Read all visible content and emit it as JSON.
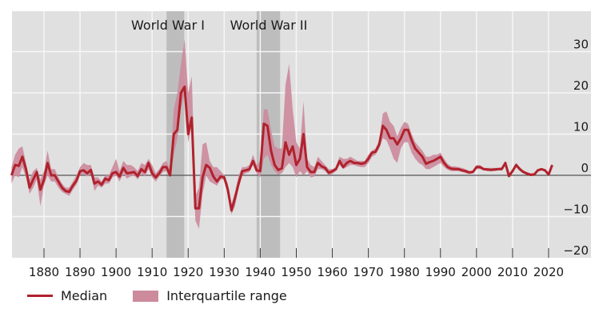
{
  "chart_data": {
    "type": "line",
    "title": "",
    "xlabel": "",
    "ylabel": "",
    "xlim": [
      1871,
      2032
    ],
    "ylim": [
      -20,
      40
    ],
    "grid": true,
    "legend_position": "bottom-left",
    "x_ticks": [
      1880,
      1890,
      1900,
      1910,
      1920,
      1930,
      1940,
      1950,
      1960,
      1970,
      1980,
      1990,
      2000,
      2010,
      2020
    ],
    "x_tick_labels": [
      "1880",
      "1890",
      "1900",
      "1910",
      "1920",
      "1930",
      "1940",
      "1950",
      "1960",
      "1970",
      "1980",
      "1990",
      "2000",
      "2010",
      "2020"
    ],
    "y_ticks": [
      30,
      20,
      10,
      0,
      -10,
      -20
    ],
    "y_tick_labels": [
      "30",
      "20",
      "10",
      "0",
      "−10",
      "−20"
    ],
    "y_axis_side": "right",
    "annotations": [
      {
        "label": "World War I",
        "start": 1914,
        "end": 1918.9
      },
      {
        "label": "World War II",
        "start": 1939,
        "end": 1945.5
      }
    ],
    "colors": {
      "median": "#b0222c",
      "iqr": "#cc8a9c",
      "band": "#bdbdbd",
      "plot_bg": "#e0e0e0",
      "grid": "#f6f6f6",
      "zero": "#555555"
    },
    "legend": [
      {
        "name": "Median",
        "kind": "line"
      },
      {
        "name": "Interquartile range",
        "kind": "area"
      }
    ],
    "series": [
      {
        "name": "Median",
        "x": [
          1871,
          1872,
          1873,
          1874,
          1875,
          1876,
          1877,
          1878,
          1879,
          1880,
          1881,
          1882,
          1883,
          1884,
          1885,
          1886,
          1887,
          1888,
          1889,
          1890,
          1891,
          1892,
          1893,
          1894,
          1895,
          1896,
          1897,
          1898,
          1899,
          1900,
          1901,
          1902,
          1903,
          1904,
          1905,
          1906,
          1907,
          1908,
          1909,
          1910,
          1911,
          1912,
          1913,
          1914,
          1915,
          1916,
          1917,
          1918,
          1919,
          1920,
          1921,
          1922,
          1923,
          1924,
          1925,
          1926,
          1927,
          1928,
          1929,
          1930,
          1931,
          1932,
          1933,
          1934,
          1935,
          1936,
          1937,
          1938,
          1939,
          1940,
          1941,
          1942,
          1943,
          1944,
          1945,
          1946,
          1947,
          1948,
          1949,
          1950,
          1951,
          1952,
          1953,
          1954,
          1955,
          1956,
          1957,
          1958,
          1959,
          1960,
          1961,
          1962,
          1963,
          1964,
          1965,
          1966,
          1967,
          1968,
          1969,
          1970,
          1971,
          1972,
          1973,
          1974,
          1975,
          1976,
          1977,
          1978,
          1979,
          1980,
          1981,
          1982,
          1983,
          1984,
          1985,
          1986,
          1987,
          1988,
          1989,
          1990,
          1991,
          1992,
          1993,
          1994,
          1995,
          1996,
          1997,
          1998,
          1999,
          2000,
          2001,
          2002,
          2003,
          2004,
          2005,
          2006,
          2007,
          2008,
          2009,
          2010,
          2011,
          2012,
          2013,
          2014,
          2015,
          2016,
          2017,
          2018,
          2019,
          2020,
          2021,
          2022
        ],
        "values": [
          0,
          2.5,
          2.3,
          4.5,
          1.5,
          -3,
          -1,
          0.8,
          -3.5,
          -1,
          3,
          0,
          0,
          -1.5,
          -3,
          -3.8,
          -4,
          -2.5,
          -1.3,
          1,
          1.2,
          0.5,
          1.3,
          -2,
          -1.5,
          -2.3,
          -0.8,
          -1.2,
          0.5,
          0.8,
          -0.3,
          1.8,
          0.5,
          0.6,
          0.8,
          -0.2,
          1.5,
          0.8,
          3,
          0.5,
          -0.5,
          0.5,
          2,
          2,
          0,
          10,
          11,
          20,
          21.5,
          10,
          14,
          -8,
          -8,
          -0.5,
          2.5,
          1.8,
          -0.3,
          -1.5,
          -0.3,
          -0.5,
          -3.5,
          -8.5,
          -5.5,
          -2,
          1,
          1.2,
          1.5,
          3.5,
          1.2,
          1,
          12.5,
          12,
          6,
          2.5,
          1.3,
          1.7,
          8,
          5,
          7,
          2.5,
          4,
          10,
          2,
          0.8,
          0.8,
          3,
          2.2,
          1.8,
          0.6,
          1,
          1.5,
          3.5,
          2,
          3,
          3.5,
          3,
          3,
          2.8,
          3,
          4,
          5.5,
          5.7,
          7.5,
          12,
          11,
          9,
          9,
          7.5,
          9,
          11,
          11,
          8.5,
          6.5,
          5.5,
          4.5,
          2.8,
          3.2,
          3.5,
          4,
          4.5,
          3,
          2,
          1.6,
          1.5,
          1.5,
          1.2,
          1,
          0.7,
          0.8,
          2,
          2,
          1.5,
          1.4,
          1.3,
          1.4,
          1.5,
          1.5,
          3,
          -0.2,
          1,
          2.5,
          1.5,
          0.8,
          0.4,
          0.1,
          0.2,
          1.2,
          1.5,
          1.2,
          0.2,
          2.5,
          null
        ]
      },
      {
        "name": "Interquartile range (lower)",
        "x": [
          1871,
          1872,
          1873,
          1874,
          1875,
          1876,
          1877,
          1878,
          1879,
          1880,
          1881,
          1882,
          1883,
          1884,
          1885,
          1886,
          1887,
          1888,
          1889,
          1890,
          1891,
          1892,
          1893,
          1894,
          1895,
          1896,
          1897,
          1898,
          1899,
          1900,
          1901,
          1902,
          1903,
          1904,
          1905,
          1906,
          1907,
          1908,
          1909,
          1910,
          1911,
          1912,
          1913,
          1914,
          1915,
          1916,
          1917,
          1918,
          1919,
          1920,
          1921,
          1922,
          1923,
          1924,
          1925,
          1926,
          1927,
          1928,
          1929,
          1930,
          1931,
          1932,
          1933,
          1934,
          1935,
          1936,
          1937,
          1938,
          1939,
          1940,
          1941,
          1942,
          1943,
          1944,
          1945,
          1946,
          1947,
          1948,
          1949,
          1950,
          1951,
          1952,
          1953,
          1954,
          1955,
          1956,
          1957,
          1958,
          1959,
          1960,
          1961,
          1962,
          1963,
          1964,
          1965,
          1966,
          1967,
          1968,
          1969,
          1970,
          1971,
          1972,
          1973,
          1974,
          1975,
          1976,
          1977,
          1978,
          1979,
          1980,
          1981,
          1982,
          1983,
          1984,
          1985,
          1986,
          1987,
          1988,
          1989,
          1990,
          1991,
          1992,
          1993,
          1994,
          1995,
          1996,
          1997,
          1998,
          1999,
          2000,
          2001,
          2002,
          2003,
          2004,
          2005,
          2006,
          2007,
          2008,
          2009,
          2010,
          2011,
          2012,
          2013,
          2014,
          2015,
          2016,
          2017,
          2018,
          2019,
          2020,
          2021
        ],
        "values": [
          -2,
          0,
          -0.5,
          2,
          -0.5,
          -4.5,
          -3,
          -1,
          -7.5,
          -2.5,
          0,
          -1.5,
          -1.5,
          -3,
          -4,
          -4.5,
          -5,
          -3.5,
          -2.3,
          0,
          0.3,
          -0.3,
          0.3,
          -3.8,
          -2.5,
          -3,
          -2,
          -2,
          -0.5,
          0,
          -1.5,
          0.5,
          -0.8,
          -0.3,
          0,
          -1,
          0.5,
          -0.3,
          1.5,
          -0.5,
          -1.5,
          -0.3,
          0.8,
          1,
          -0.5,
          5,
          9,
          16,
          20,
          8,
          12,
          -11,
          -13,
          -4.5,
          0,
          -1.5,
          -2,
          -2.5,
          -1,
          -1,
          -5,
          -9.5,
          -7.5,
          -3,
          0,
          0.5,
          0.8,
          2.5,
          0.5,
          -0.5,
          4,
          5,
          2.5,
          1,
          0.2,
          0.5,
          2,
          3,
          2,
          -0.5,
          1,
          0,
          1,
          -0.5,
          -0.3,
          1.5,
          1.5,
          1,
          0,
          0.3,
          1,
          2.5,
          1.5,
          2,
          2.5,
          2.5,
          2.2,
          2,
          2,
          3,
          4.5,
          5,
          6.5,
          9,
          8.5,
          6.5,
          4,
          3,
          6.5,
          8,
          8,
          5.5,
          4,
          3,
          2.5,
          1.5,
          1.5,
          2,
          2.5,
          3,
          2,
          1.3,
          1,
          1,
          1,
          0.8,
          0.5,
          0.3,
          0.5,
          1.5,
          1.5,
          1.2,
          1,
          1,
          1,
          1.2,
          1.2,
          2.5,
          -0.5,
          0.7,
          2,
          1.2,
          0.6,
          0.2,
          0,
          0,
          1,
          1.3,
          1,
          0,
          2.2
        ]
      },
      {
        "name": "Interquartile range (upper)",
        "x": [
          1871,
          1872,
          1873,
          1874,
          1875,
          1876,
          1877,
          1878,
          1879,
          1880,
          1881,
          1882,
          1883,
          1884,
          1885,
          1886,
          1887,
          1888,
          1889,
          1890,
          1891,
          1892,
          1893,
          1894,
          1895,
          1896,
          1897,
          1898,
          1899,
          1900,
          1901,
          1902,
          1903,
          1904,
          1905,
          1906,
          1907,
          1908,
          1909,
          1910,
          1911,
          1912,
          1913,
          1914,
          1915,
          1916,
          1917,
          1918,
          1919,
          1920,
          1921,
          1922,
          1923,
          1924,
          1925,
          1926,
          1927,
          1928,
          1929,
          1930,
          1931,
          1932,
          1933,
          1934,
          1935,
          1936,
          1937,
          1938,
          1939,
          1940,
          1941,
          1942,
          1943,
          1944,
          1945,
          1946,
          1947,
          1948,
          1949,
          1950,
          1951,
          1952,
          1953,
          1954,
          1955,
          1956,
          1957,
          1958,
          1959,
          1960,
          1961,
          1962,
          1963,
          1964,
          1965,
          1966,
          1967,
          1968,
          1969,
          1970,
          1971,
          1972,
          1973,
          1974,
          1975,
          1976,
          1977,
          1978,
          1979,
          1980,
          1981,
          1982,
          1983,
          1984,
          1985,
          1986,
          1987,
          1988,
          1989,
          1990,
          1991,
          1992,
          1993,
          1994,
          1995,
          1996,
          1997,
          1998,
          1999,
          2000,
          2001,
          2002,
          2003,
          2004,
          2005,
          2006,
          2007,
          2008,
          2009,
          2010,
          2011,
          2012,
          2013,
          2014,
          2015,
          2016,
          2017,
          2018,
          2019,
          2020,
          2021
        ],
        "values": [
          2,
          5,
          6.5,
          7,
          3,
          -1,
          1,
          1.8,
          -1,
          1,
          6,
          1.5,
          1.5,
          -0.5,
          -2,
          -3,
          -3,
          -1.5,
          0,
          2,
          3,
          2.5,
          2.5,
          -0.5,
          -0.5,
          -1.5,
          0,
          0,
          2,
          4,
          1,
          3.5,
          2.5,
          2.5,
          2,
          1,
          3,
          2.5,
          4,
          2.5,
          0.5,
          1.5,
          3,
          3.5,
          1.5,
          16,
          20,
          27,
          33,
          20,
          24,
          -5,
          -3,
          7.5,
          8,
          3.5,
          2,
          2,
          1,
          0,
          -2,
          -7,
          -4,
          0,
          2,
          2,
          2.5,
          5,
          2.5,
          3.5,
          16,
          16,
          11,
          7,
          6.5,
          6.5,
          22,
          27,
          16,
          8,
          6.5,
          18,
          4,
          2.5,
          2,
          4.5,
          3.5,
          2.5,
          1.5,
          1.5,
          2,
          4.5,
          4,
          4,
          4.5,
          4,
          3.5,
          3.5,
          3.5,
          5,
          6,
          6.5,
          8.5,
          15,
          15.5,
          13,
          12,
          9.5,
          11.5,
          13,
          12.5,
          10,
          8,
          7,
          6,
          4.5,
          4.5,
          5,
          5,
          5.5,
          4,
          2.8,
          2.2,
          2.2,
          2,
          1.8,
          1.5,
          1,
          1.2,
          2.5,
          2.5,
          1.8,
          1.8,
          1.8,
          1.8,
          1.8,
          2,
          3.5,
          0.5,
          1.5,
          3,
          2,
          1.2,
          0.8,
          0.5,
          0.5,
          1.5,
          1.7,
          1.5,
          0.5,
          2.8
        ]
      }
    ]
  },
  "legend": {
    "median_label": "Median",
    "iqr_label": "Interquartile range"
  }
}
